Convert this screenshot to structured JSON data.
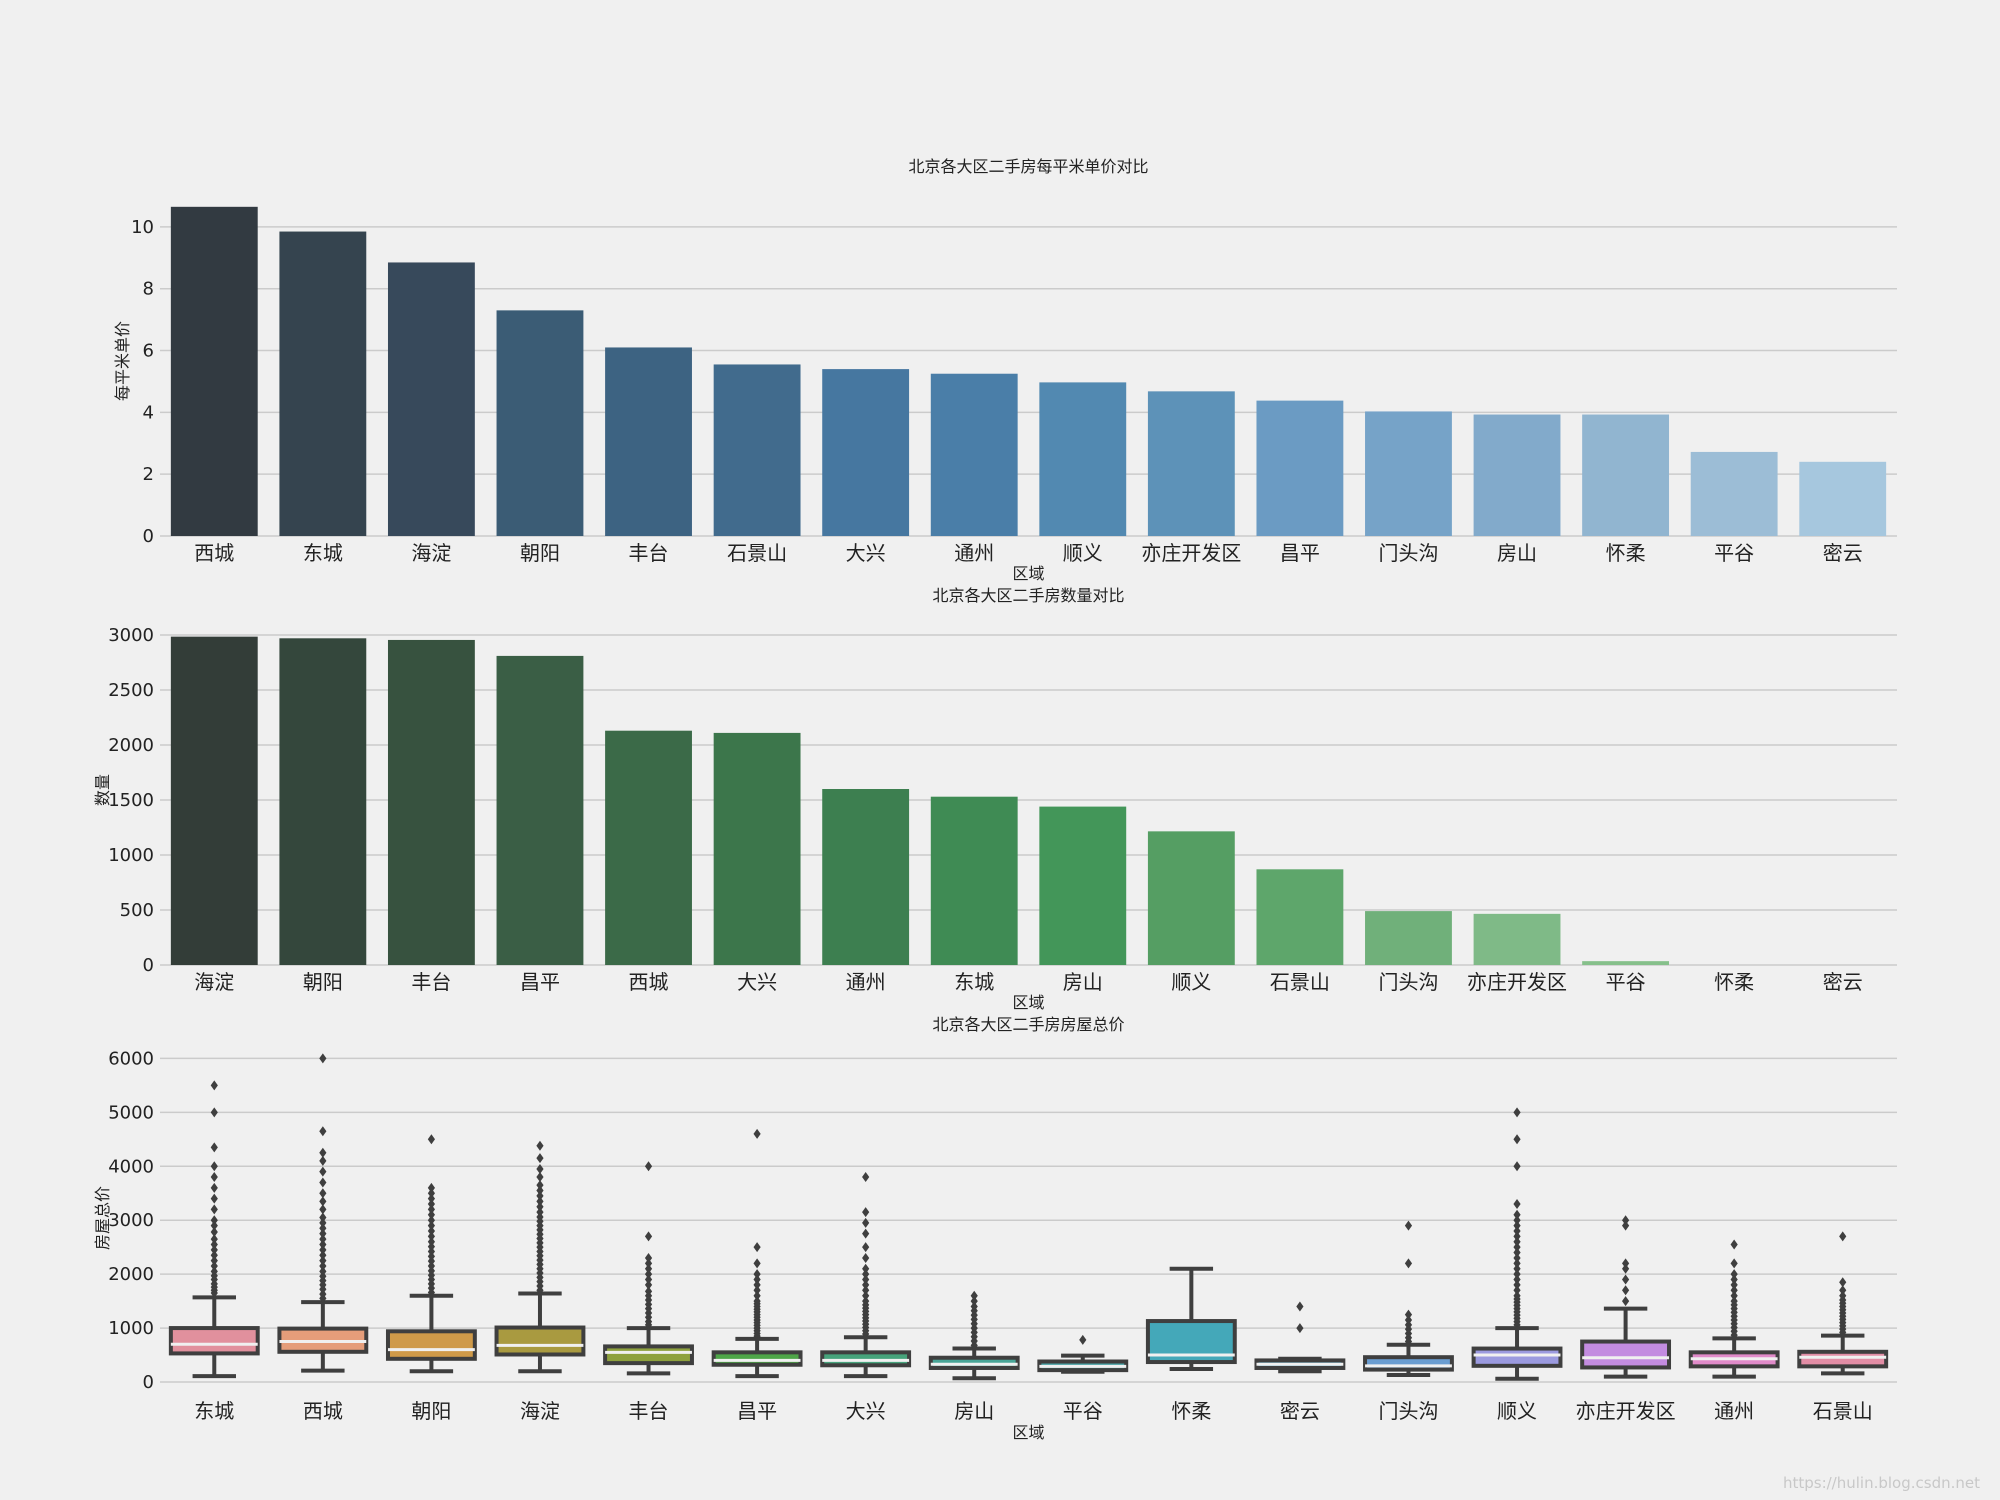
{
  "watermark": "https://hulin.blog.csdn.net",
  "chart_data": [
    {
      "type": "bar",
      "title": "北京各大区二手房每平米单价对比",
      "xlabel": "区域",
      "ylabel": "每平米单价",
      "ylim": [
        0,
        11
      ],
      "yticks": [
        0,
        2,
        4,
        6,
        8,
        10
      ],
      "palette": [
        "#323a41",
        "#35444f",
        "#37495b",
        "#3b5c75",
        "#3d6382",
        "#416b8d",
        "#4677a0",
        "#4a7ea8",
        "#5289b1",
        "#5d92b8",
        "#6b9bc3",
        "#76a3c8",
        "#82aacb",
        "#91b5d0",
        "#9cbdd6",
        "#a6c7de"
      ],
      "categories": [
        "西城",
        "东城",
        "海淀",
        "朝阳",
        "丰台",
        "石景山",
        "大兴",
        "通州",
        "顺义",
        "亦庄开发区",
        "昌平",
        "门头沟",
        "房山",
        "怀柔",
        "平谷",
        "密云"
      ],
      "values": [
        10.65,
        9.85,
        8.85,
        7.3,
        6.1,
        5.55,
        5.4,
        5.25,
        4.97,
        4.68,
        4.38,
        4.03,
        3.93,
        3.93,
        2.72,
        2.4
      ]
    },
    {
      "type": "bar",
      "title": "北京各大区二手房数量对比",
      "xlabel": "区域",
      "ylabel": "数量",
      "ylim": [
        0,
        3100
      ],
      "yticks": [
        0,
        500,
        1000,
        1500,
        2000,
        2500,
        3000
      ],
      "palette": [
        "#333d38",
        "#34473c",
        "#37523f",
        "#3a5e45",
        "#3b6a48",
        "#3c764b",
        "#3d7f50",
        "#3f8b54",
        "#439659",
        "#559e63",
        "#5ea66b",
        "#70b07a",
        "#7fba87",
        "#86c08b",
        "#8ec594",
        "#97cb9b"
      ],
      "categories": [
        "海淀",
        "朝阳",
        "丰台",
        "昌平",
        "西城",
        "大兴",
        "通州",
        "东城",
        "房山",
        "顺义",
        "石景山",
        "门头沟",
        "亦庄开发区",
        "平谷",
        "怀柔",
        "密云"
      ],
      "values": [
        2985,
        2970,
        2955,
        2810,
        2130,
        2110,
        1600,
        1530,
        1440,
        1215,
        870,
        490,
        465,
        35,
        0,
        0
      ]
    },
    {
      "type": "box",
      "title": "北京各大区二手房房屋总价",
      "xlabel": "区域",
      "ylabel": "房屋总价",
      "ylim": [
        0,
        6100
      ],
      "yticks": [
        0,
        1000,
        2000,
        3000,
        4000,
        5000,
        6000
      ],
      "categories": [
        "东城",
        "西城",
        "朝阳",
        "海淀",
        "丰台",
        "昌平",
        "大兴",
        "房山",
        "平谷",
        "怀柔",
        "密云",
        "门头沟",
        "顺义",
        "亦庄开发区",
        "通州",
        "石景山"
      ],
      "series": [
        {
          "name": "东城",
          "color": "#e1909d",
          "min": 110,
          "q1": 530,
          "median": 700,
          "q3": 1000,
          "max": 1570,
          "outliers": [
            1650,
            1700,
            1760,
            1820,
            1900,
            1970,
            2050,
            2150,
            2250,
            2350,
            2450,
            2550,
            2650,
            2780,
            2900,
            3000,
            3200,
            3400,
            3600,
            3800,
            4000,
            4350,
            5000,
            5500
          ]
        },
        {
          "name": "西城",
          "color": "#e59d7a",
          "min": 210,
          "q1": 560,
          "median": 750,
          "q3": 990,
          "max": 1480,
          "outliers": [
            1550,
            1630,
            1720,
            1800,
            1880,
            1960,
            2050,
            2150,
            2250,
            2350,
            2450,
            2550,
            2650,
            2750,
            2850,
            2950,
            3050,
            3200,
            3350,
            3500,
            3700,
            3900,
            4100,
            4250,
            4650,
            6000
          ]
        },
        {
          "name": "朝阳",
          "color": "#cf9a49",
          "min": 200,
          "q1": 430,
          "median": 600,
          "q3": 940,
          "max": 1600,
          "outliers": [
            1660,
            1740,
            1820,
            1900,
            1980,
            2060,
            2150,
            2240,
            2330,
            2420,
            2510,
            2600,
            2700,
            2800,
            2900,
            3000,
            3100,
            3200,
            3300,
            3400,
            3500,
            3600,
            4500
          ]
        },
        {
          "name": "海淀",
          "color": "#a99a40",
          "min": 200,
          "q1": 510,
          "median": 680,
          "q3": 1010,
          "max": 1640,
          "outliers": [
            1700,
            1780,
            1860,
            1940,
            2020,
            2100,
            2180,
            2260,
            2340,
            2420,
            2500,
            2580,
            2660,
            2740,
            2820,
            2900,
            2980,
            3060,
            3150,
            3250,
            3350,
            3450,
            3550,
            3650,
            3800,
            3950,
            4150,
            4380
          ]
        },
        {
          "name": "丰台",
          "color": "#8ea13e",
          "min": 160,
          "q1": 350,
          "median": 550,
          "q3": 660,
          "max": 1000,
          "outliers": [
            1060,
            1120,
            1200,
            1280,
            1360,
            1440,
            1520,
            1600,
            1680,
            1800,
            1900,
            2000,
            2100,
            2200,
            2300,
            2700,
            4000
          ]
        },
        {
          "name": "昌平",
          "color": "#4ea548",
          "min": 110,
          "q1": 320,
          "median": 400,
          "q3": 550,
          "max": 800,
          "outliers": [
            850,
            900,
            950,
            1000,
            1050,
            1100,
            1150,
            1200,
            1250,
            1300,
            1350,
            1400,
            1450,
            1500,
            1600,
            1700,
            1800,
            1900,
            2000,
            2200,
            2500,
            4600
          ]
        },
        {
          "name": "大兴",
          "color": "#46a37b",
          "min": 110,
          "q1": 310,
          "median": 400,
          "q3": 550,
          "max": 830,
          "outliers": [
            890,
            950,
            1010,
            1070,
            1130,
            1190,
            1250,
            1310,
            1370,
            1430,
            1500,
            1600,
            1700,
            1800,
            1900,
            2000,
            2100,
            2300,
            2500,
            2750,
            2950,
            3150,
            3800
          ]
        },
        {
          "name": "房山",
          "color": "#48a597",
          "min": 70,
          "q1": 260,
          "median": 330,
          "q3": 450,
          "max": 620,
          "outliers": [
            680,
            760,
            840,
            920,
            1000,
            1080,
            1160,
            1240,
            1320,
            1400,
            1500,
            1600
          ]
        },
        {
          "name": "平谷",
          "color": "#47a2a5",
          "min": 190,
          "q1": 220,
          "median": 290,
          "q3": 380,
          "max": 490,
          "outliers": [
            780
          ]
        },
        {
          "name": "怀柔",
          "color": "#44a8b9",
          "min": 240,
          "q1": 370,
          "median": 500,
          "q3": 1130,
          "max": 2100,
          "outliers": []
        },
        {
          "name": "密云",
          "color": "#4c9fc0",
          "min": 200,
          "q1": 260,
          "median": 330,
          "q3": 400,
          "max": 430,
          "outliers": [
            1000,
            1400
          ]
        },
        {
          "name": "门头沟",
          "color": "#6a9dd1",
          "min": 130,
          "q1": 230,
          "median": 300,
          "q3": 460,
          "max": 690,
          "outliers": [
            750,
            820,
            900,
            980,
            1060,
            1150,
            1250,
            2200,
            2900
          ]
        },
        {
          "name": "顺义",
          "color": "#9b9adf",
          "min": 60,
          "q1": 300,
          "median": 500,
          "q3": 620,
          "max": 1000,
          "outliers": [
            1060,
            1120,
            1180,
            1240,
            1300,
            1360,
            1420,
            1480,
            1540,
            1600,
            1700,
            1800,
            1900,
            2000,
            2100,
            2200,
            2300,
            2400,
            2500,
            2600,
            2700,
            2800,
            2900,
            3000,
            3100,
            3300,
            4000,
            4500,
            5000
          ]
        },
        {
          "name": "亦庄开发区",
          "color": "#c38ce0",
          "min": 100,
          "q1": 270,
          "median": 450,
          "q3": 750,
          "max": 1360,
          "outliers": [
            1500,
            1700,
            1900,
            2100,
            2200,
            2900,
            3000
          ]
        },
        {
          "name": "通州",
          "color": "#e08bc9",
          "min": 100,
          "q1": 290,
          "median": 430,
          "q3": 550,
          "max": 810,
          "outliers": [
            870,
            940,
            1010,
            1080,
            1150,
            1220,
            1290,
            1360,
            1430,
            1500,
            1600,
            1700,
            1800,
            1900,
            2000,
            2200,
            2550
          ]
        },
        {
          "name": "石景山",
          "color": "#e28da5",
          "min": 160,
          "q1": 290,
          "median": 460,
          "q3": 560,
          "max": 860,
          "outliers": [
            920,
            980,
            1040,
            1100,
            1160,
            1220,
            1280,
            1340,
            1400,
            1460,
            1520,
            1600,
            1700,
            1850,
            2700
          ]
        }
      ]
    }
  ]
}
